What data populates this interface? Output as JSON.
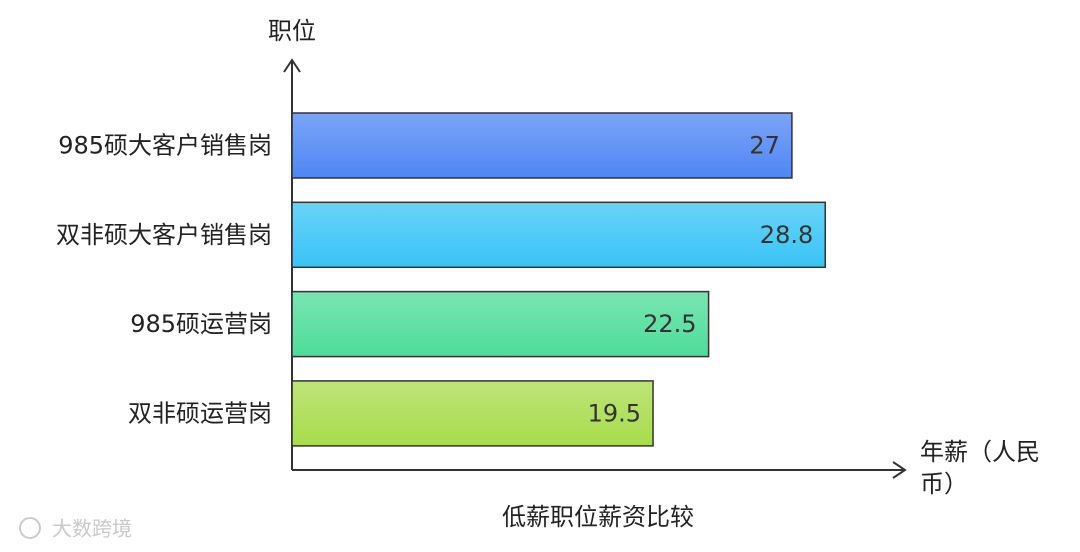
{
  "chart_data": {
    "type": "hbar",
    "title": "低薪职位薪资比较",
    "y_label": "职位",
    "x_label": "年薪（人民币）",
    "categories": [
      "985硕大客户销售岗",
      "双非硕大客户销售岗",
      "985硕运营岗",
      "双非硕运营岗"
    ],
    "values": [
      27,
      28.8,
      22.5,
      19.5
    ],
    "colors": [
      "#4f86f5",
      "#38c4f6",
      "#4edc9a",
      "#a8dc4c"
    ],
    "xlim": [
      0,
      33
    ],
    "watermark": "大数跨境"
  }
}
